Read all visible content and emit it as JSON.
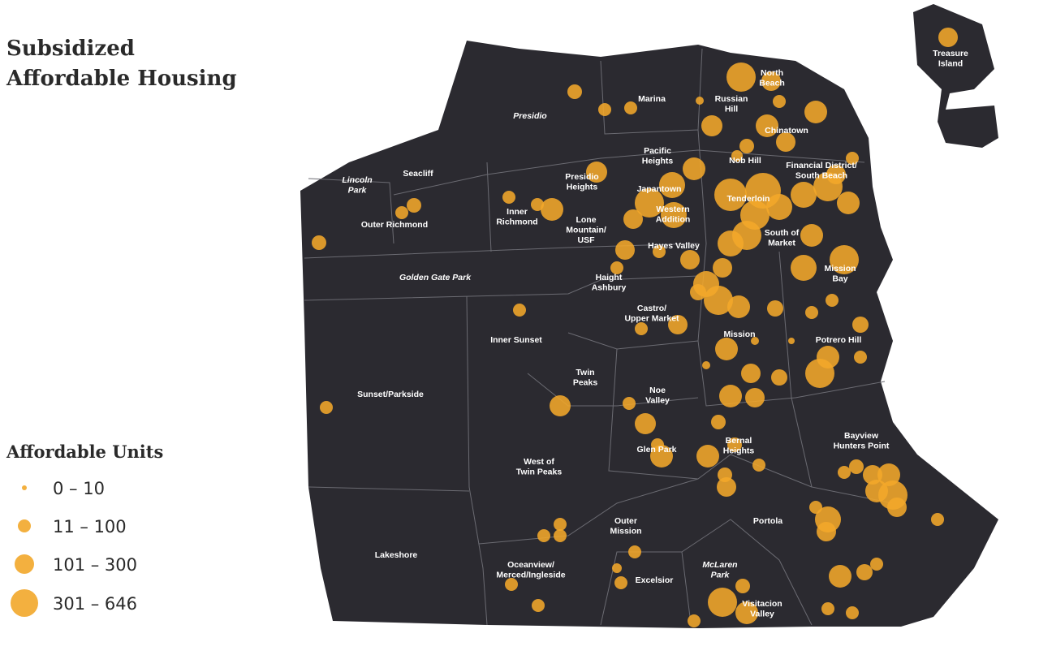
{
  "header": {
    "title": [
      "Subsidized",
      "Affordable Housing"
    ]
  },
  "legend": {
    "title": "Affordable Units",
    "classes": [
      "0 – 10",
      "11 – 100",
      "101 – 300",
      "301 – 646"
    ]
  },
  "neighborhoods": [
    [
      "Presidio"
    ],
    [
      "Marina"
    ],
    [
      "Russian",
      "Hill"
    ],
    [
      "North",
      "Beach"
    ],
    [
      "Chinatown"
    ],
    [
      "Treasure",
      "Island"
    ],
    [
      "Pacific",
      "Heights"
    ],
    [
      "Nob Hill"
    ],
    [
      "Financial District/",
      "South Beach"
    ],
    [
      "Lincoln",
      "Park"
    ],
    [
      "Seacliff"
    ],
    [
      "Presidio",
      "Heights"
    ],
    [
      "Japantown"
    ],
    [
      "Tenderloin"
    ],
    [
      "Inner",
      "Richmond"
    ],
    [
      "Western",
      "Addition"
    ],
    [
      "Lone",
      "Mountain/",
      "USF"
    ],
    [
      "Outer Richmond"
    ],
    [
      "South of",
      "Market"
    ],
    [
      "Hayes Valley"
    ],
    [
      "Mission",
      "Bay"
    ],
    [
      "Golden Gate Park"
    ],
    [
      "Haight",
      "Ashbury"
    ],
    [
      "Castro/",
      "Upper Market"
    ],
    [
      "Inner Sunset"
    ],
    [
      "Mission"
    ],
    [
      "Potrero Hill"
    ],
    [
      "Twin",
      "Peaks"
    ],
    [
      "Noe",
      "Valley"
    ],
    [
      "Sunset/Parkside"
    ],
    [
      "Bayview",
      "Hunters Point"
    ],
    [
      "Bernal",
      "Heights"
    ],
    [
      "Glen Park"
    ],
    [
      "West of",
      "Twin Peaks"
    ],
    [
      "Outer",
      "Mission"
    ],
    [
      "Portola"
    ],
    [
      "Lakeshore"
    ],
    [
      "McLaren",
      "Park"
    ],
    [
      "Oceanview/",
      "Merced/Ingleside"
    ],
    [
      "Excelsior"
    ],
    [
      "Visitacion",
      "Valley"
    ]
  ]
}
